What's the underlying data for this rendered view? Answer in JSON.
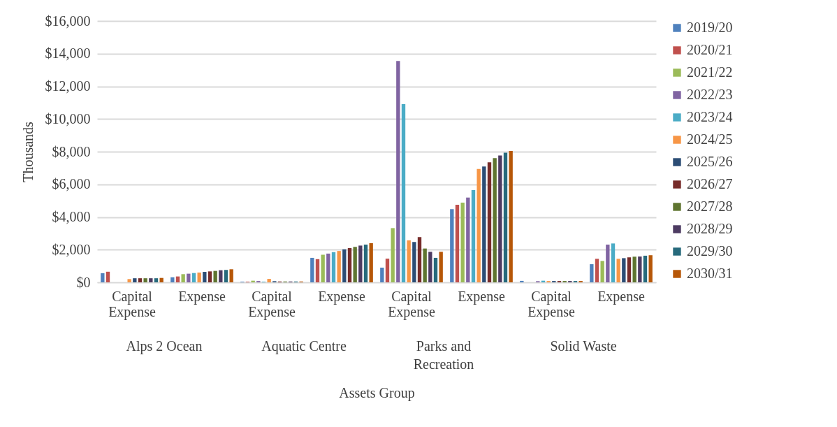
{
  "chart_data": {
    "type": "bar",
    "ylabel": "Thousands",
    "xlabel": "Assets Group",
    "categories": [
      "Capital Expense",
      "Expense",
      "Capital Expense",
      "Expense",
      "Capital Expense",
      "Expense",
      "Capital Expense",
      "Expense"
    ],
    "annotations": [
      "Alps 2 Ocean",
      "Aquatic Centre",
      "Parks and Recreation",
      "Solid Waste"
    ],
    "ylim": [
      0,
      16000
    ],
    "yticks": [
      {
        "value": 0,
        "label": "$0"
      },
      {
        "value": 2000,
        "label": "$2,000"
      },
      {
        "value": 4000,
        "label": "$4,000"
      },
      {
        "value": 6000,
        "label": "$6,000"
      },
      {
        "value": 8000,
        "label": "$8,000"
      },
      {
        "value": 10000,
        "label": "$10,000"
      },
      {
        "value": 12000,
        "label": "$12,000"
      },
      {
        "value": 14000,
        "label": "$14,000"
      },
      {
        "value": 16000,
        "label": "$16,000"
      }
    ],
    "grid": "y",
    "legend": "right",
    "series": [
      {
        "name": "2019/20",
        "color": "#4f81bd",
        "values": [
          560,
          310,
          40,
          1500,
          900,
          4480,
          90,
          1110
        ]
      },
      {
        "name": "2020/21",
        "color": "#c0504d",
        "values": [
          650,
          360,
          40,
          1420,
          1450,
          4750,
          0,
          1440
        ]
      },
      {
        "name": "2021/22",
        "color": "#9bbb59",
        "values": [
          0,
          500,
          100,
          1690,
          3320,
          4880,
          0,
          1310
        ]
      },
      {
        "name": "2022/23",
        "color": "#8064a2",
        "values": [
          0,
          530,
          80,
          1760,
          13550,
          5190,
          70,
          2310
        ]
      },
      {
        "name": "2023/24",
        "color": "#4bacc6",
        "values": [
          0,
          570,
          40,
          1850,
          10910,
          5650,
          100,
          2380
        ]
      },
      {
        "name": "2024/25",
        "color": "#f79646",
        "values": [
          200,
          600,
          210,
          1920,
          2570,
          6940,
          80,
          1440
        ]
      },
      {
        "name": "2025/26",
        "color": "#2c4d75",
        "values": [
          250,
          640,
          70,
          2020,
          2470,
          7090,
          80,
          1480
        ]
      },
      {
        "name": "2026/27",
        "color": "#772c2a",
        "values": [
          250,
          670,
          50,
          2100,
          2770,
          7350,
          80,
          1530
        ]
      },
      {
        "name": "2027/28",
        "color": "#5f7530",
        "values": [
          250,
          700,
          50,
          2170,
          2070,
          7600,
          80,
          1570
        ]
      },
      {
        "name": "2028/29",
        "color": "#4d3b62",
        "values": [
          250,
          740,
          50,
          2250,
          1870,
          7770,
          80,
          1580
        ]
      },
      {
        "name": "2029/30",
        "color": "#276a7c",
        "values": [
          250,
          760,
          50,
          2310,
          1500,
          7940,
          80,
          1630
        ]
      },
      {
        "name": "2030/31",
        "color": "#b65708",
        "values": [
          270,
          800,
          50,
          2400,
          1870,
          8040,
          80,
          1660
        ]
      }
    ]
  }
}
